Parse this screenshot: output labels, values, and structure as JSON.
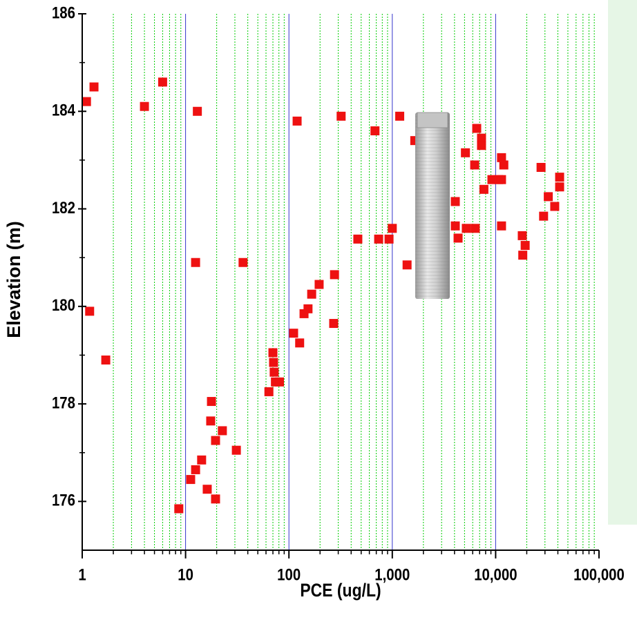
{
  "chart_data": {
    "type": "scatter",
    "x_label": "PCE (ug/L)",
    "y_label": "Elevation (m)",
    "x_scale": "log",
    "xlim": [
      1,
      100000
    ],
    "xticks": [
      1,
      10,
      100,
      {
        "value": 1000,
        "label": "1,000"
      },
      {
        "value": 10000,
        "label": "10,000"
      },
      {
        "value": 100000,
        "label": "100,000"
      }
    ],
    "ylim": [
      175,
      186
    ],
    "yticks": [
      176,
      178,
      180,
      182,
      184,
      186
    ],
    "grid": true,
    "grid_color": "#00cc00",
    "major_grid_color": "#3333cc",
    "color": "#ee1111",
    "x": [
      1.1,
      1.3,
      4,
      6,
      13,
      120,
      320,
      680,
      1180,
      1650,
      6560,
      7300,
      7300,
      5100,
      6270,
      11400,
      12000,
      9200,
      10700,
      11400,
      7700,
      27500,
      41600,
      41600,
      32300,
      37300,
      29100,
      4070,
      4070,
      5200,
      6350,
      11400,
      4330,
      464,
      738,
      1000,
      930,
      18100,
      19300,
      18300,
      1390,
      12.5,
      36,
      276,
      196,
      166,
      153,
      140,
      1.18,
      271,
      111,
      127,
      1.69,
      70,
      71,
      72,
      74,
      81,
      64,
      17.8,
      17.5,
      22.7,
      19.5,
      31,
      14.3,
      12.5,
      11.2,
      16.2,
      19.5,
      8.6
    ],
    "values": [
      184.2,
      184.5,
      184.1,
      184.6,
      184.0,
      183.8,
      183.9,
      183.6,
      183.9,
      183.4,
      183.65,
      183.45,
      183.3,
      183.15,
      182.9,
      183.05,
      182.9,
      182.6,
      182.6,
      182.6,
      182.4,
      182.85,
      182.65,
      182.45,
      182.25,
      182.05,
      181.85,
      182.15,
      181.65,
      181.6,
      181.6,
      181.65,
      181.4,
      181.38,
      181.38,
      181.6,
      181.38,
      181.45,
      181.25,
      181.05,
      180.85,
      180.9,
      180.9,
      180.65,
      180.45,
      180.25,
      179.95,
      179.85,
      179.9,
      179.65,
      179.45,
      179.25,
      178.9,
      179.05,
      178.85,
      178.65,
      178.45,
      178.45,
      178.25,
      178.05,
      177.65,
      177.45,
      177.25,
      177.05,
      176.85,
      176.65,
      176.45,
      176.25,
      176.05,
      175.85
    ]
  }
}
